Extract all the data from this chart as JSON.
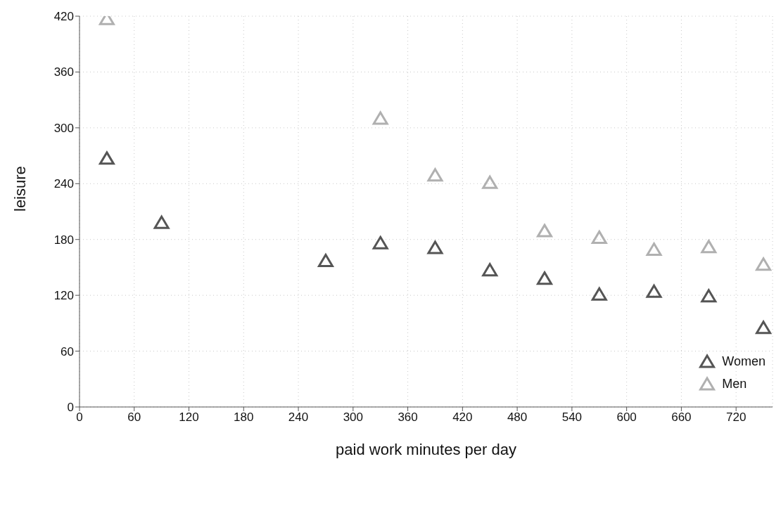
{
  "chart_data": {
    "type": "scatter",
    "xlabel": "paid work minutes per day",
    "ylabel": "leisure",
    "xlim": [
      0,
      760
    ],
    "xticks": [
      0,
      60,
      120,
      180,
      240,
      300,
      360,
      420,
      480,
      540,
      600,
      660,
      720
    ],
    "ylim": [
      0,
      420
    ],
    "yticks": [
      0,
      60,
      120,
      180,
      240,
      300,
      360,
      420
    ],
    "grid": true,
    "legend": "bottom right",
    "marker": "triangle",
    "series": [
      {
        "name": "Women",
        "color": "#555555",
        "x": [
          30,
          90,
          270,
          330,
          390,
          450,
          510,
          570,
          630,
          690,
          750
        ],
        "values": [
          266,
          197,
          156,
          175,
          170,
          146,
          137,
          120,
          123,
          118,
          84
        ]
      },
      {
        "name": "Men",
        "color": "#b0b0b0",
        "x": [
          30,
          330,
          390,
          450,
          510,
          570,
          630,
          690,
          750
        ],
        "values": [
          416,
          309,
          248,
          240,
          188,
          181,
          168,
          171,
          152
        ]
      }
    ]
  }
}
